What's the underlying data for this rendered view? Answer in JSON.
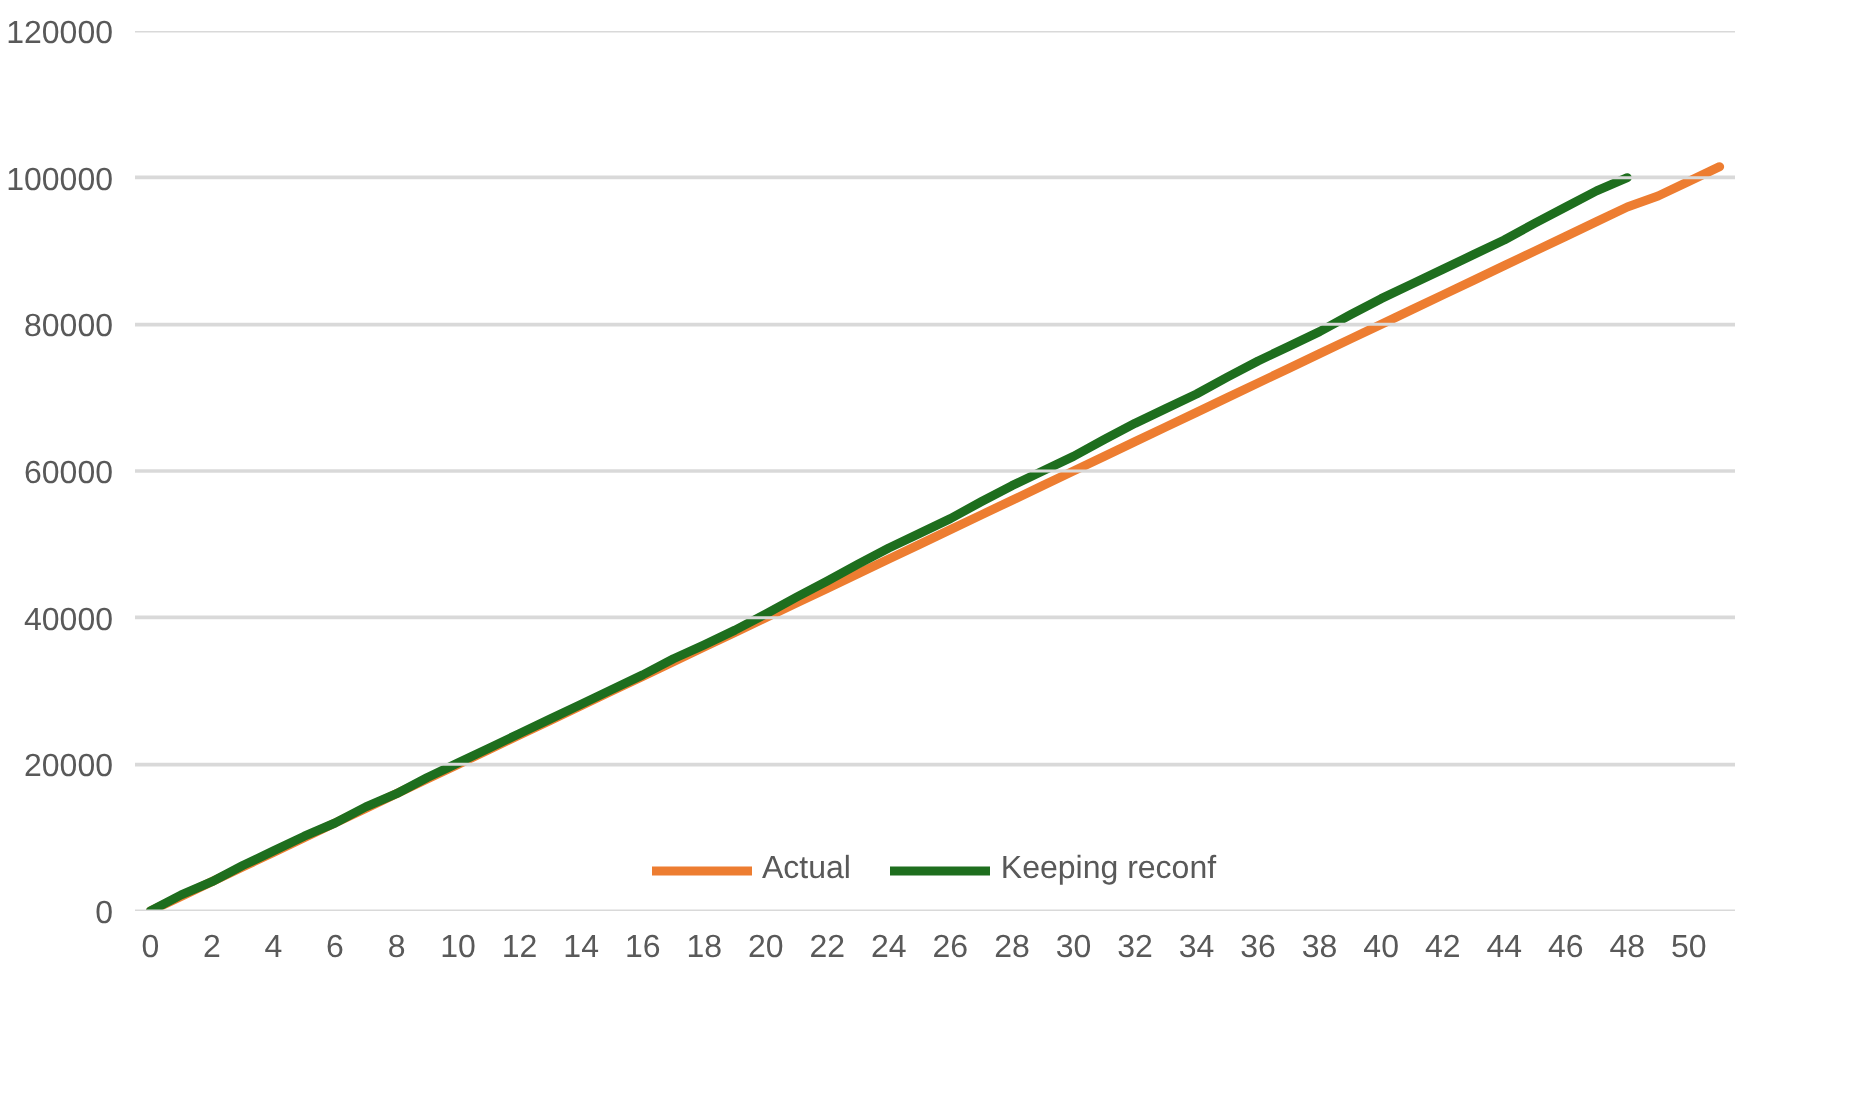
{
  "chart_data": {
    "type": "line",
    "x": [
      0,
      1,
      2,
      3,
      4,
      5,
      6,
      7,
      8,
      9,
      10,
      11,
      12,
      13,
      14,
      15,
      16,
      17,
      18,
      19,
      20,
      21,
      22,
      23,
      24,
      25,
      26,
      27,
      28,
      29,
      30,
      31,
      32,
      33,
      34,
      35,
      36,
      37,
      38,
      39,
      40,
      41,
      42,
      43,
      44,
      45,
      46,
      47,
      48,
      49,
      50,
      51
    ],
    "series": [
      {
        "name": "Actual",
        "color": "#ed7d31",
        "values": [
          0,
          2000,
          4000,
          6000,
          8000,
          10000,
          12000,
          14000,
          16000,
          18000,
          20000,
          22000,
          24000,
          26000,
          28000,
          30000,
          32000,
          34000,
          36000,
          38000,
          40000,
          42000,
          44000,
          46000,
          48000,
          50000,
          52000,
          54000,
          56000,
          58000,
          60000,
          62000,
          64000,
          66000,
          68000,
          70000,
          72000,
          74000,
          76000,
          78000,
          80000,
          82000,
          84000,
          86000,
          88000,
          90000,
          92000,
          94000,
          96000,
          97500,
          99500,
          101500
        ]
      },
      {
        "name": "Keeping reconf",
        "color": "#1e6e1e",
        "x": [
          0,
          1,
          2,
          3,
          4,
          5,
          6,
          7,
          8,
          9,
          10,
          11,
          12,
          13,
          14,
          15,
          16,
          17,
          18,
          19,
          20,
          21,
          22,
          23,
          24,
          25,
          26,
          27,
          28,
          29,
          30,
          31,
          32,
          33,
          34,
          35,
          36,
          37,
          38,
          39,
          40,
          41,
          42,
          43,
          44,
          45,
          46,
          47,
          48
        ],
        "values": [
          0,
          2200,
          4000,
          6200,
          8200,
          10200,
          12000,
          14200,
          16000,
          18200,
          20200,
          22200,
          24200,
          26200,
          28200,
          30200,
          32200,
          34400,
          36300,
          38300,
          40500,
          42800,
          45000,
          47300,
          49500,
          51500,
          53500,
          55800,
          58000,
          60000,
          62000,
          64300,
          66500,
          68500,
          70500,
          72800,
          75000,
          77000,
          79000,
          81300,
          83500,
          85500,
          87500,
          89500,
          91500,
          93800,
          96000,
          98200,
          100000
        ]
      }
    ],
    "xlim": [
      -0.5,
      51.5
    ],
    "xticks": [
      0,
      2,
      4,
      6,
      8,
      10,
      12,
      14,
      16,
      18,
      20,
      22,
      24,
      26,
      28,
      30,
      32,
      34,
      36,
      38,
      40,
      42,
      44,
      46,
      48,
      50
    ],
    "ylim": [
      0,
      120000
    ],
    "yticks": [
      0,
      20000,
      40000,
      60000,
      80000,
      100000,
      120000
    ],
    "grid": "y",
    "legend": "bottom",
    "line_style": "solid",
    "marker": "none"
  }
}
